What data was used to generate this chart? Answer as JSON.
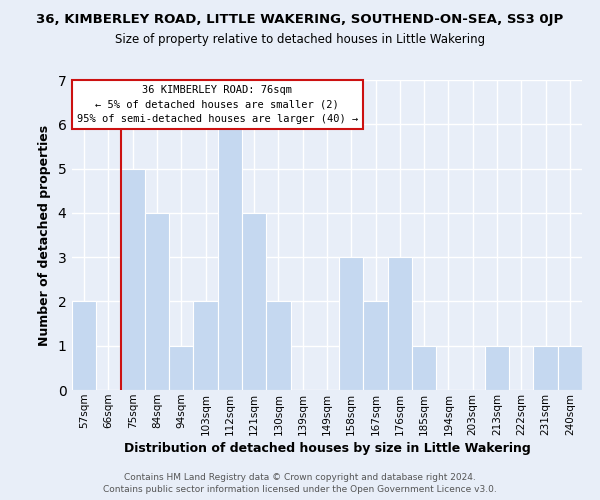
{
  "title_main": "36, KIMBERLEY ROAD, LITTLE WAKERING, SOUTHEND-ON-SEA, SS3 0JP",
  "title_sub": "Size of property relative to detached houses in Little Wakering",
  "xlabel": "Distribution of detached houses by size in Little Wakering",
  "ylabel": "Number of detached properties",
  "bin_labels": [
    "57sqm",
    "66sqm",
    "75sqm",
    "84sqm",
    "94sqm",
    "103sqm",
    "112sqm",
    "121sqm",
    "130sqm",
    "139sqm",
    "149sqm",
    "158sqm",
    "167sqm",
    "176sqm",
    "185sqm",
    "194sqm",
    "203sqm",
    "213sqm",
    "222sqm",
    "231sqm",
    "240sqm"
  ],
  "bar_heights": [
    2,
    0,
    5,
    4,
    1,
    2,
    6,
    4,
    2,
    0,
    0,
    3,
    2,
    3,
    1,
    0,
    0,
    1,
    0,
    1,
    1
  ],
  "bar_color": "#c5d8f0",
  "highlight_bar_index": 2,
  "highlight_color": "#cc1111",
  "ylim": [
    0,
    7
  ],
  "yticks": [
    0,
    1,
    2,
    3,
    4,
    5,
    6,
    7
  ],
  "annotation_title": "36 KIMBERLEY ROAD: 76sqm",
  "annotation_line1": "← 5% of detached houses are smaller (2)",
  "annotation_line2": "95% of semi-detached houses are larger (40) →",
  "annotation_box_facecolor": "#ffffff",
  "annotation_box_edgecolor": "#cc1111",
  "footer_line1": "Contains HM Land Registry data © Crown copyright and database right 2024.",
  "footer_line2": "Contains public sector information licensed under the Open Government Licence v3.0.",
  "background_color": "#e8eef8",
  "plot_bg_color": "#e8eef8",
  "grid_color": "#ffffff",
  "title_fontsize": 9.5,
  "subtitle_fontsize": 8.5,
  "xlabel_fontsize": 9,
  "ylabel_fontsize": 9,
  "tick_fontsize": 7.5,
  "annotation_fontsize": 7.5,
  "footer_fontsize": 6.5
}
